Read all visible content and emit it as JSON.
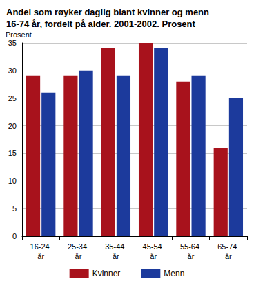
{
  "chart_data": {
    "type": "bar",
    "title": "Andel som røyker daglig blant kvinner og menn 16-74 år, fordelt på alder. 2001-2002. Prosent",
    "y_label": "Prosent",
    "categories": [
      "16-24 år",
      "25-34 år",
      "35-44 år",
      "45-54 år",
      "55-64 år",
      "65-74 år"
    ],
    "series": [
      {
        "name": "Kvinner",
        "color": "#a8121c",
        "values": [
          29,
          29,
          34,
          35,
          28,
          16
        ]
      },
      {
        "name": "Menn",
        "color": "#1c3a9c",
        "values": [
          26,
          30,
          29,
          34,
          29,
          25
        ]
      }
    ],
    "ylim": [
      0,
      35
    ],
    "yticks": [
      0,
      5,
      10,
      15,
      20,
      25,
      30,
      35
    ],
    "grid": true,
    "legend": "bottom"
  }
}
